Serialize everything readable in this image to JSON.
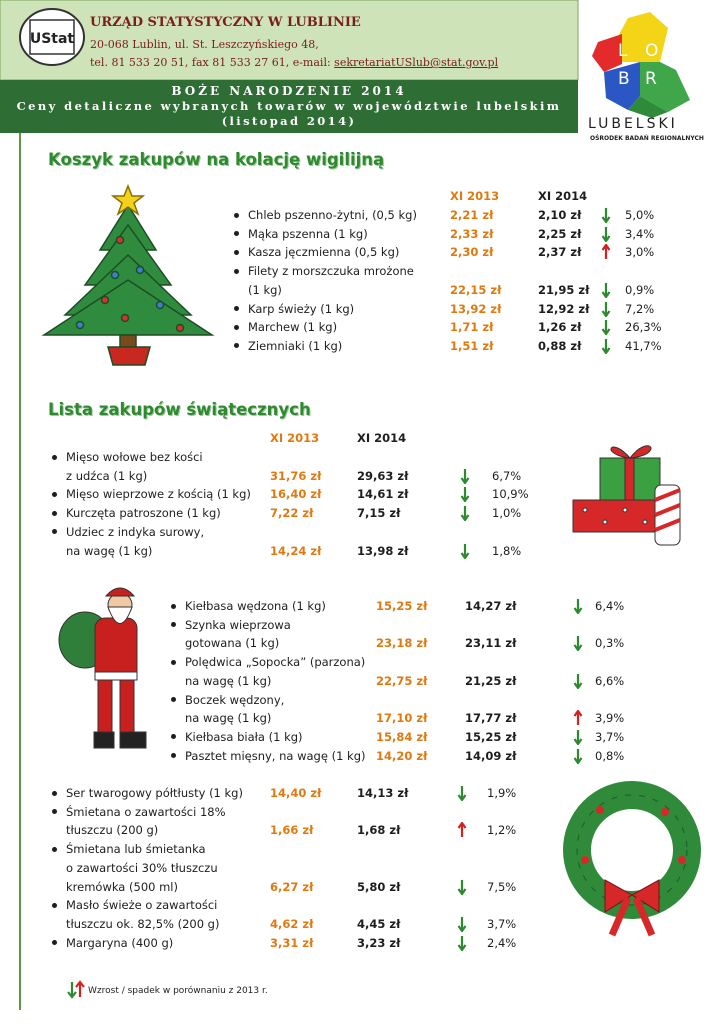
{
  "header": {
    "logo": "UStat",
    "office": "URZĄD STATYSTYCZNY W LUBLINIE",
    "address": "20-068 Lublin, ul. St. Leszczyńskiego 48,",
    "contact": "tel. 81 533 20 51, fax 81 533 27 61, e-mail:",
    "email": "sekretariatUSlub@stat.gov.pl",
    "banner_title": "BOŻE NARODZENIE 2014",
    "banner_subtitle": "Ceny detaliczne wybranych towarów w województwie lubelskim",
    "banner_period": "(listopad 2014)",
    "region_letters": [
      "L",
      "O",
      "B",
      "R"
    ],
    "region_name": "LUBELSKI",
    "region_office": "OŚRODEK BADAŃ REGIONALNYCH"
  },
  "basket": {
    "title": "Koszyk zakupów na kolację wigilijną",
    "columns": [
      "XI 2013",
      "XI 2014"
    ],
    "items": [
      {
        "name": [
          "Chleb pszenno-żytni, (0,5 kg)"
        ],
        "price_2013": "2,21 zł",
        "price_2014": "2,10 zł",
        "trend": "down",
        "change": "5,0%"
      },
      {
        "name": [
          "Mąka pszenna (1 kg)"
        ],
        "price_2013": "2,33 zł",
        "price_2014": "2,25 zł",
        "trend": "down",
        "change": "3,4%"
      },
      {
        "name": [
          "Kasza jęczmienna (0,5 kg)"
        ],
        "price_2013": "2,30 zł",
        "price_2014": "2,37 zł",
        "trend": "up",
        "change": "3,0%"
      },
      {
        "name": [
          "Filety z morszczuka mrożone",
          "(1 kg)"
        ],
        "price_2013": "22,15 zł",
        "price_2014": "21,95 zł",
        "trend": "down",
        "change": "0,9%"
      },
      {
        "name": [
          "Karp świeży (1 kg)"
        ],
        "price_2013": "13,92 zł",
        "price_2014": "12,92 zł",
        "trend": "down",
        "change": "7,2%"
      },
      {
        "name": [
          "Marchew (1 kg)"
        ],
        "price_2013": "1,71 zł",
        "price_2014": "1,26 zł",
        "trend": "down",
        "change": "26,3%"
      },
      {
        "name": [
          "Ziemniaki (1 kg)"
        ],
        "price_2013": "1,51 zł",
        "price_2014": "0,88 zł",
        "trend": "down",
        "change": "41,7%"
      }
    ]
  },
  "shopping": {
    "title": "Lista zakupów świątecznych",
    "columns": [
      "XI 2013",
      "XI 2014"
    ],
    "groups": [
      {
        "items": [
          {
            "name": [
              "Mięso wołowe bez kości",
              "z udźca (1 kg)"
            ],
            "price_2013": "31,76 zł",
            "price_2014": "29,63 zł",
            "trend": "down",
            "change": "6,7%"
          },
          {
            "name": [
              "Mięso wieprzowe z kością (1 kg)"
            ],
            "price_2013": "16,40 zł",
            "price_2014": "14,61 zł",
            "trend": "down",
            "change": "10,9%"
          },
          {
            "name": [
              "Kurczęta patroszone (1 kg)"
            ],
            "price_2013": "7,22 zł",
            "price_2014": "7,15 zł",
            "trend": "down",
            "change": "1,0%"
          },
          {
            "name": [
              "Udziec z indyka surowy,",
              "na wagę (1 kg)"
            ],
            "price_2013": "14,24 zł",
            "price_2014": "13,98 zł",
            "trend": "down",
            "change": "1,8%"
          }
        ]
      },
      {
        "items": [
          {
            "name": [
              "Kiełbasa wędzona (1 kg)"
            ],
            "price_2013": "15,25 zł",
            "price_2014": "14,27 zł",
            "trend": "down",
            "change": "6,4%"
          },
          {
            "name": [
              "Szynka wieprzowa",
              "gotowana (1 kg)"
            ],
            "price_2013": "23,18 zł",
            "price_2014": "23,11 zł",
            "trend": "down",
            "change": "0,3%"
          },
          {
            "name": [
              "Polędwica „Sopocka” (parzona)",
              "na wagę (1 kg)"
            ],
            "price_2013": "22,75 zł",
            "price_2014": "21,25 zł",
            "trend": "down",
            "change": "6,6%"
          },
          {
            "name": [
              "Boczek wędzony,",
              "na wagę (1 kg)"
            ],
            "price_2013": "17,10 zł",
            "price_2014": "17,77 zł",
            "trend": "up",
            "change": "3,9%"
          },
          {
            "name": [
              "Kiełbasa biała (1 kg)"
            ],
            "price_2013": "15,84 zł",
            "price_2014": "15,25 zł",
            "trend": "down",
            "change": "3,7%"
          },
          {
            "name": [
              "Pasztet mięsny, na wagę (1 kg)"
            ],
            "price_2013": "14,20 zł",
            "price_2014": "14,09 zł",
            "trend": "down",
            "change": "0,8%"
          }
        ]
      },
      {
        "items": [
          {
            "name": [
              "Ser twarogowy półtłusty (1 kg)"
            ],
            "price_2013": "14,40 zł",
            "price_2014": "14,13 zł",
            "trend": "down",
            "change": "1,9%"
          },
          {
            "name": [
              "Śmietana o zawartości 18%",
              "tłuszczu (200 g)"
            ],
            "price_2013": "1,66 zł",
            "price_2014": "1,68 zł",
            "trend": "up",
            "change": "1,2%"
          },
          {
            "name": [
              "Śmietana lub śmietanka",
              "o zawartości 30% tłuszczu",
              "kremówka (500 ml)"
            ],
            "price_2013": "6,27 zł",
            "price_2014": "5,80 zł",
            "trend": "down",
            "change": "7,5%"
          },
          {
            "name": [
              "Masło świeże o zawartości",
              "tłuszczu ok. 82,5% (200 g)"
            ],
            "price_2013": "4,62 zł",
            "price_2014": "4,45 zł",
            "trend": "down",
            "change": "3,7%"
          },
          {
            "name": [
              "Margaryna (400 g)"
            ],
            "price_2013": "3,31 zł",
            "price_2014": "3,23 zł",
            "trend": "down",
            "change": "2,4%"
          }
        ]
      }
    ]
  },
  "legend": "Wzrost / spadek w porównaniu z 2013 r."
}
